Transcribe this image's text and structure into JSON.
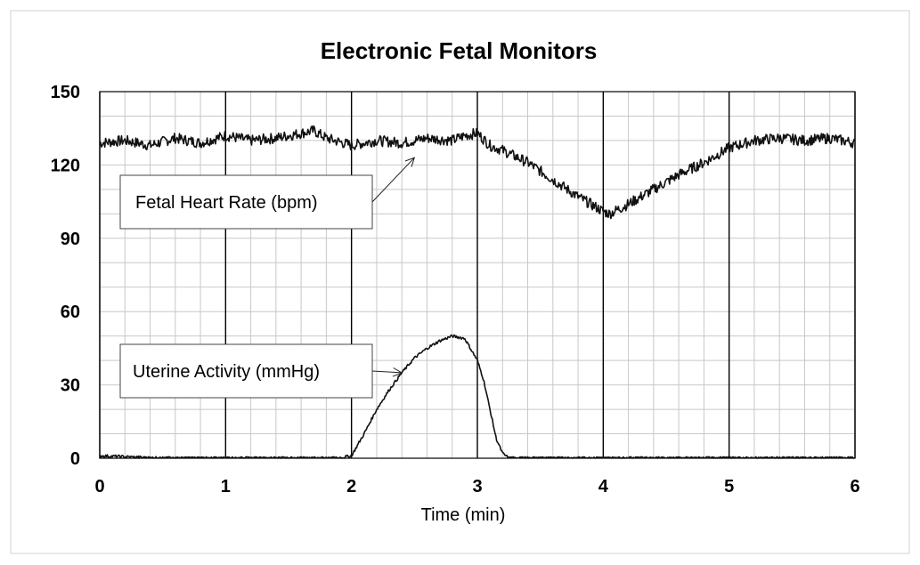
{
  "chart_data": {
    "type": "line",
    "title": "Electronic Fetal Monitors",
    "xlabel": "Time (min)",
    "ylabel": "",
    "xlim": [
      0,
      6
    ],
    "ylim": [
      0,
      150
    ],
    "x_ticks": [
      0,
      1,
      2,
      3,
      4,
      5,
      6
    ],
    "y_ticks": [
      0,
      30,
      60,
      90,
      120,
      150
    ],
    "x_minor_step": 0.2,
    "y_minor_step": 10,
    "grid": true,
    "series": [
      {
        "name": "Fetal Heart Rate (bpm)",
        "x": [
          0,
          0.2,
          0.4,
          0.6,
          0.8,
          1.0,
          1.2,
          1.4,
          1.6,
          1.7,
          1.8,
          2.0,
          2.2,
          2.4,
          2.6,
          2.8,
          2.9,
          3.0,
          3.1,
          3.2,
          3.4,
          3.6,
          3.8,
          3.9,
          4.0,
          4.05,
          4.2,
          4.4,
          4.6,
          4.8,
          5.0,
          5.2,
          5.4,
          5.6,
          5.8,
          6.0
        ],
        "values": [
          129,
          130,
          128,
          131,
          129,
          132,
          130,
          131,
          133,
          134,
          131,
          128,
          130,
          129,
          131,
          130,
          132,
          133,
          128,
          126,
          121,
          114,
          107,
          104,
          101,
          100,
          104,
          110,
          116,
          121,
          127,
          130,
          131,
          130,
          131,
          129
        ]
      },
      {
        "name": "Uterine Activity (mmHg)",
        "x": [
          0,
          0.5,
          1.0,
          1.5,
          1.9,
          2.0,
          2.1,
          2.2,
          2.3,
          2.4,
          2.5,
          2.6,
          2.7,
          2.8,
          2.9,
          3.0,
          3.05,
          3.1,
          3.15,
          3.2,
          3.25,
          3.4,
          4.0,
          5.0,
          6.0
        ],
        "values": [
          1,
          0,
          0,
          0,
          0,
          1,
          10,
          20,
          28,
          35,
          41,
          45,
          48,
          50,
          49,
          40,
          32,
          20,
          8,
          2,
          0,
          0,
          0,
          0,
          0
        ]
      }
    ],
    "annotations": [
      {
        "text": "Fetal Heart Rate (bpm)",
        "points_to": "Fetal Heart Rate (bpm)",
        "target": [
          2.5,
          123
        ]
      },
      {
        "text": "Uterine Activity (mmHg)",
        "points_to": "Uterine Activity (mmHg)",
        "target": [
          2.4,
          35
        ]
      }
    ]
  }
}
